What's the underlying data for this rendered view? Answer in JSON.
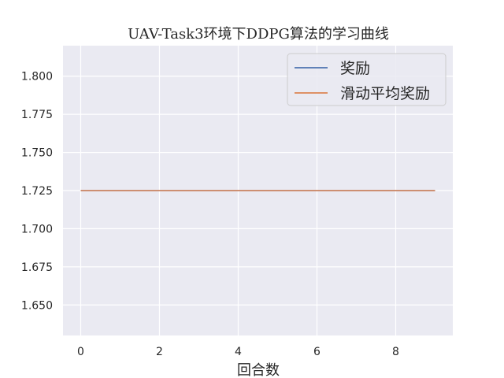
{
  "chart_data": {
    "type": "line",
    "title": "UAV-Task3环境下DDPG算法的学习曲线",
    "xlabel": "回合数",
    "ylabel": "",
    "xlim": [
      -0.45,
      9.45
    ],
    "ylim": [
      1.63,
      1.82
    ],
    "xticks": [
      0,
      2,
      4,
      6,
      8
    ],
    "yticks": [
      1.65,
      1.675,
      1.7,
      1.725,
      1.75,
      1.775,
      1.8
    ],
    "ytick_labels": [
      "1.650",
      "1.675",
      "1.700",
      "1.725",
      "1.750",
      "1.775",
      "1.800"
    ],
    "grid": true,
    "legend_position": "top-right",
    "series": [
      {
        "name": "奖励",
        "color": "#4c72b0",
        "x": [
          0,
          1,
          2,
          3,
          4,
          5,
          6,
          7,
          8,
          9
        ],
        "y": [
          1.725,
          1.725,
          1.725,
          1.725,
          1.725,
          1.725,
          1.725,
          1.725,
          1.725,
          1.725
        ]
      },
      {
        "name": "滑动平均奖励",
        "color": "#dd8452",
        "x": [
          0,
          1,
          2,
          3,
          4,
          5,
          6,
          7,
          8,
          9
        ],
        "y": [
          1.725,
          1.725,
          1.725,
          1.725,
          1.725,
          1.725,
          1.725,
          1.725,
          1.725,
          1.725
        ]
      }
    ]
  }
}
